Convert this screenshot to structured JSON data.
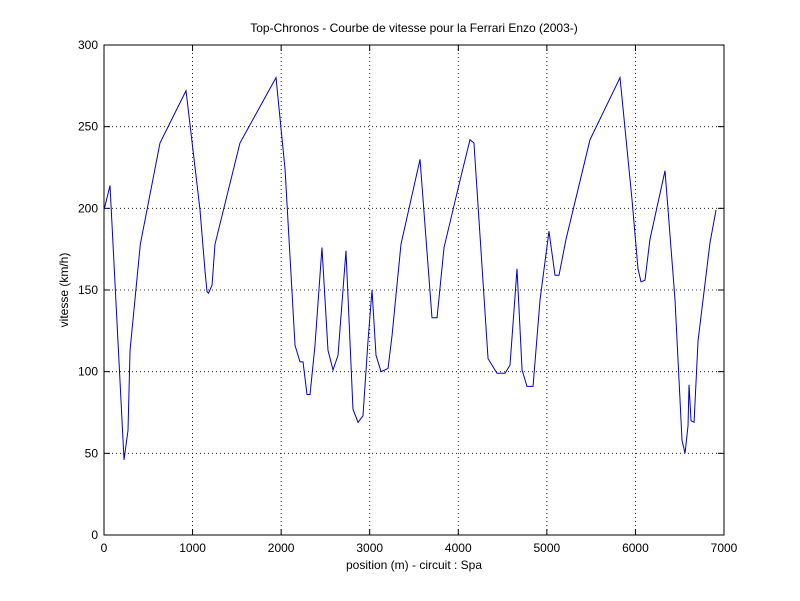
{
  "chart_data": {
    "type": "line",
    "title": "Top-Chronos - Courbe de vitesse pour la Ferrari Enzo (2003-)",
    "xlabel": "position (m) - circuit : Spa",
    "ylabel": "vitesse (km/h)",
    "x": [
      0,
      68,
      226,
      271,
      294,
      410,
      632,
      926,
      1084,
      1140,
      1163,
      1180,
      1220,
      1253,
      1535,
      1942,
      2044,
      2157,
      2213,
      2247,
      2292,
      2326,
      2382,
      2461,
      2529,
      2586,
      2642,
      2732,
      2811,
      2868,
      2924,
      2981,
      3026,
      3071,
      3128,
      3207,
      3252,
      3353,
      3568,
      3703,
      3760,
      3839,
      4019,
      4132,
      4177,
      4336,
      4437,
      4528,
      4584,
      4663,
      4720,
      4776,
      4844,
      4923,
      5024,
      5092,
      5137,
      5216,
      5487,
      5826,
      5962,
      6029,
      6063,
      6108,
      6164,
      6334,
      6447,
      6526,
      6560,
      6594,
      6605,
      6628,
      6662,
      6707,
      6842,
      6910
    ],
    "values": [
      199,
      214,
      46,
      64,
      113,
      178,
      240,
      272,
      199,
      162,
      149,
      148,
      153,
      178,
      240,
      280,
      224,
      116,
      106,
      106,
      86,
      86,
      116,
      176,
      113,
      101,
      110,
      174,
      77,
      69,
      73,
      119,
      150,
      110,
      100,
      102,
      122,
      178,
      230,
      133,
      133,
      176,
      217,
      242,
      240,
      108,
      99,
      99,
      104,
      163,
      101,
      91,
      91,
      144,
      186,
      159,
      159,
      181,
      242,
      280,
      205,
      163,
      155,
      156,
      181,
      223,
      144,
      58,
      50,
      67,
      92,
      70,
      69,
      119,
      179,
      199
    ],
    "color": "#0000cc",
    "xlim": [
      0,
      7000
    ],
    "xticks": [
      0,
      1000,
      2000,
      3000,
      4000,
      5000,
      6000,
      7000
    ],
    "ylim": [
      0,
      300
    ],
    "yticks": [
      0,
      50,
      100,
      150,
      200,
      250,
      300
    ],
    "grid": true
  }
}
